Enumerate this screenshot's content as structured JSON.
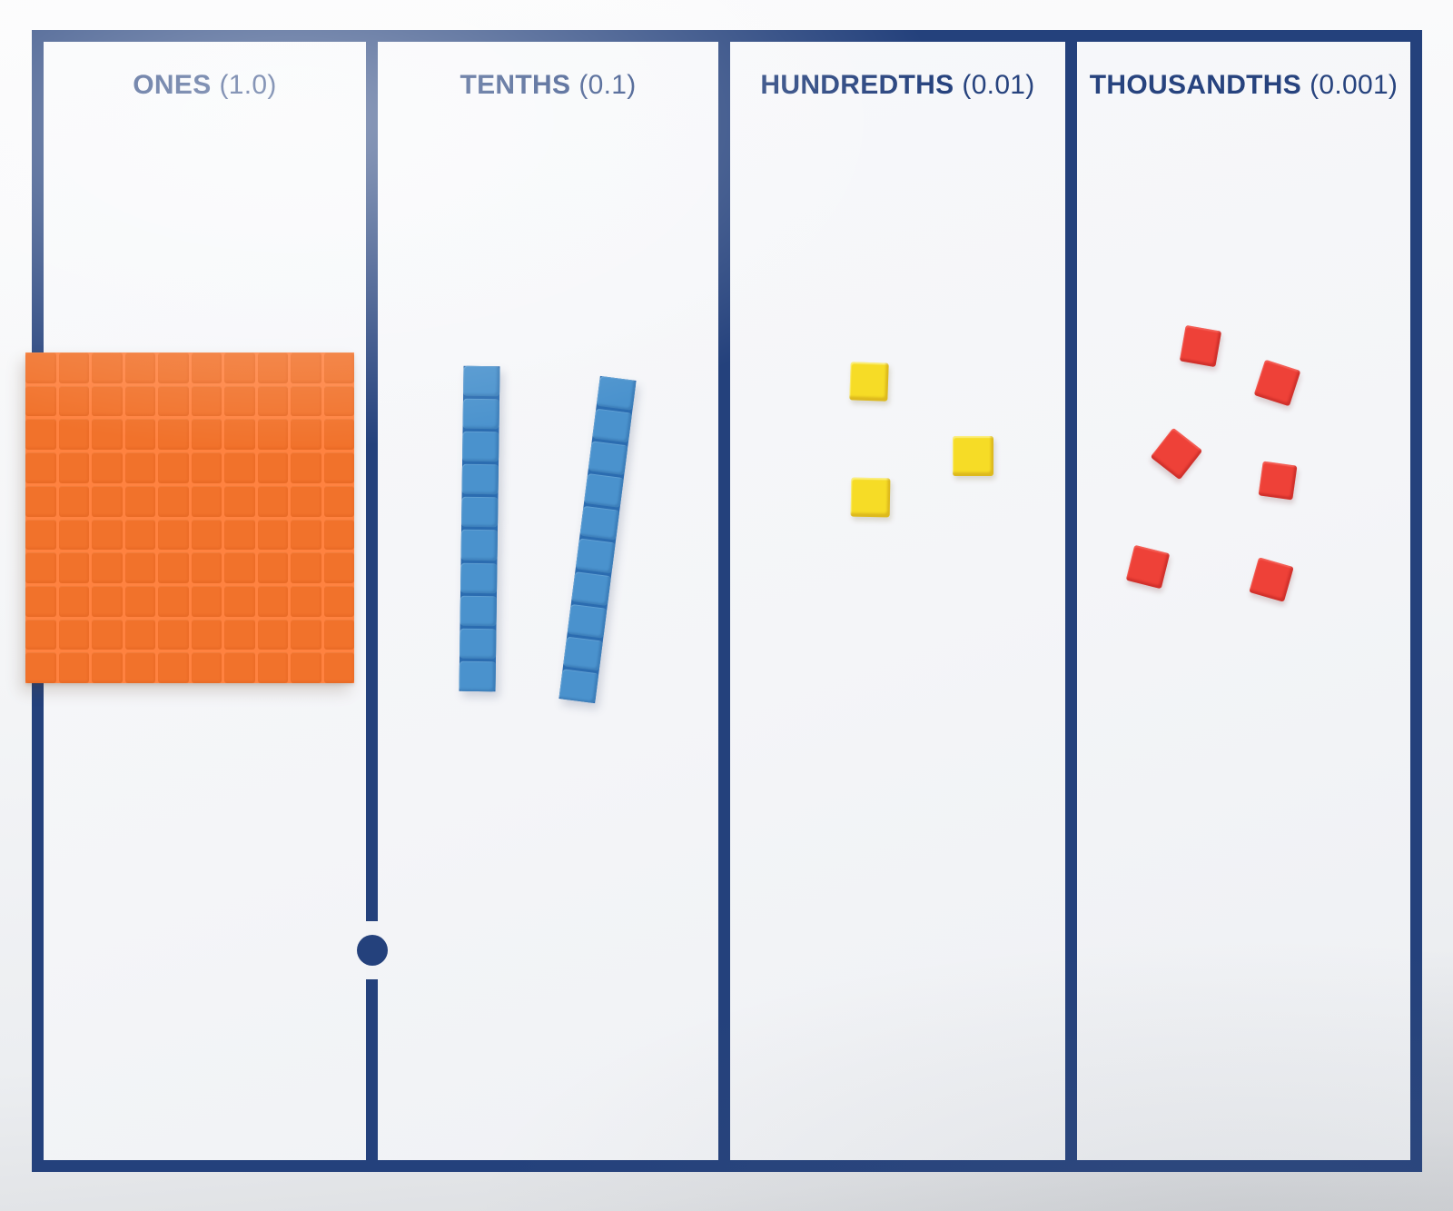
{
  "mat": {
    "type": "decimal-place-value-mat",
    "columns": [
      {
        "name": "ones",
        "label": "ONES",
        "value": "(1.0)"
      },
      {
        "name": "tenths",
        "label": "TENTHS",
        "value": "(0.1)"
      },
      {
        "name": "hundredths",
        "label": "HUNDREDTHS",
        "value": "(0.01)"
      },
      {
        "name": "thousandths",
        "label": "THOUSANDTHS",
        "value": "(0.001)"
      }
    ],
    "decimal_point_between": [
      "ones",
      "tenths"
    ],
    "colors": {
      "border_navy": "#24417C",
      "header_text": "#27437E",
      "mat_paper": "#F4F5F8"
    }
  },
  "manipulatives": {
    "ones_flat": {
      "kind": "base-ten-flat",
      "count": 1,
      "rows": 10,
      "cols": 10,
      "color": "#F1722B",
      "groove_color": "#FF8240"
    },
    "tenths_rods": {
      "kind": "base-ten-rod",
      "count": 2,
      "segments": 10,
      "color": "#4A92CD",
      "groove_color": "#2B6CB0"
    },
    "hundredths_cubes": {
      "kind": "unit-cube",
      "count": 3,
      "color": "#F6DC26"
    },
    "thousandths_cubes": {
      "kind": "unit-cube",
      "count": 6,
      "color": "#EE4138"
    }
  }
}
